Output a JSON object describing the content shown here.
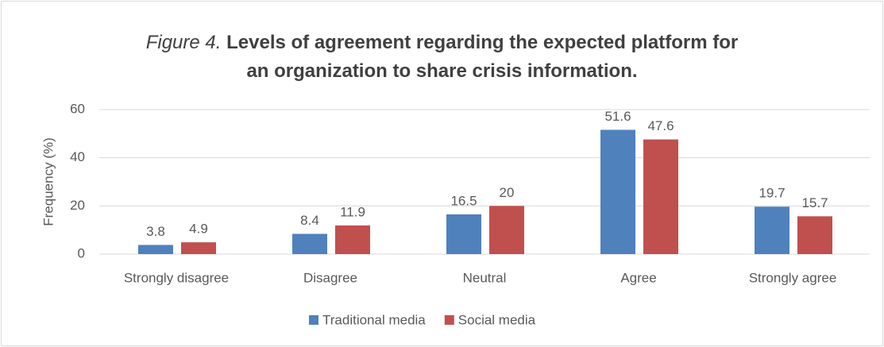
{
  "chart_data": {
    "type": "bar",
    "title": {
      "label": "Figure 4.",
      "text": "Levels of agreement regarding the expected platform for an organization to share crisis information."
    },
    "y_label": "Frequency (%)",
    "categories": [
      "Strongly disagree",
      "Disagree",
      "Neutral",
      "Agree",
      "Strongly agree"
    ],
    "series": [
      {
        "name": "Traditional media",
        "color": "#4f81bd",
        "values": [
          3.8,
          8.4,
          16.5,
          51.6,
          19.7
        ]
      },
      {
        "name": "Social media",
        "color": "#c0504d",
        "values": [
          4.9,
          11.9,
          20,
          47.6,
          15.7
        ]
      }
    ],
    "ylim": [
      0,
      60
    ],
    "yticks": [
      0,
      20,
      40,
      60
    ],
    "grid": true,
    "legend": "bottom"
  }
}
